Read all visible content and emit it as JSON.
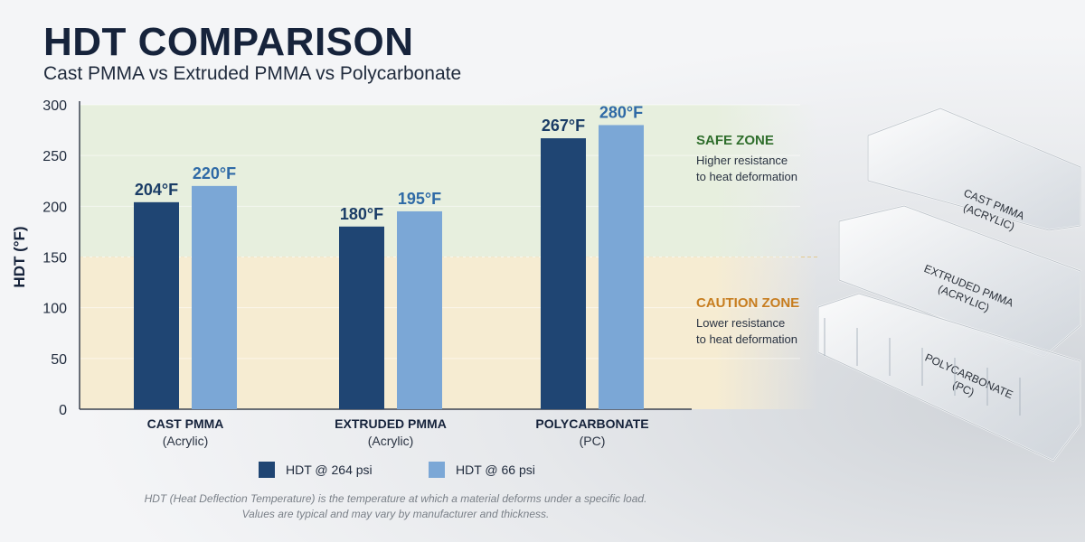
{
  "header": {
    "title": "HDT COMPARISON",
    "subtitle": "Cast PMMA vs Extruded PMMA vs Polycarbonate"
  },
  "chart_data": {
    "type": "bar",
    "categories": [
      {
        "name": "CAST PMMA",
        "sub": "(Acrylic)"
      },
      {
        "name": "EXTRUDED PMMA",
        "sub": "(Acrylic)"
      },
      {
        "name": "POLYCARBONATE",
        "sub": "(PC)"
      }
    ],
    "series": [
      {
        "name": "HDT @ 264 psi",
        "color": "#1f4573",
        "values": [
          204,
          180,
          267
        ],
        "labels": [
          "204°F",
          "180°F",
          "267°F"
        ],
        "label_color": "#1a3c66"
      },
      {
        "name": "HDT @ 66 psi",
        "color": "#7ba7d6",
        "values": [
          220,
          195,
          280
        ],
        "labels": [
          "220°F",
          "195°F",
          "280°F"
        ],
        "label_color": "#2f6aa6"
      }
    ],
    "ylabel": "HDT (°F)",
    "ylim": [
      0,
      300
    ],
    "yticks": [
      0,
      50,
      100,
      150,
      200,
      250,
      300
    ],
    "legend": "bottom",
    "zones": [
      {
        "name": "SAFE ZONE",
        "desc": [
          "Higher resistance",
          "to heat deformation"
        ],
        "from": 150,
        "to": 300,
        "fill": "#e7efde",
        "title_color": "#2f6e2c"
      },
      {
        "name": "CAUTION ZONE",
        "desc": [
          "Lower resistance",
          "to heat deformation"
        ],
        "from": 0,
        "to": 150,
        "fill": "#f6ecd2",
        "title_color": "#c77d1f"
      }
    ]
  },
  "footnote": [
    "HDT (Heat Deflection Temperature) is the temperature at which a material deforms under a specific load.",
    "Values are typical and may vary by manufacturer and thickness."
  ],
  "illustration": {
    "sheets": [
      {
        "line1": "CAST PMMA",
        "line2": "(ACRYLIC)"
      },
      {
        "line1": "EXTRUDED PMMA",
        "line2": "(ACRYLIC)"
      },
      {
        "line1": "POLYCARBONATE",
        "line2": "(PC)"
      }
    ]
  }
}
